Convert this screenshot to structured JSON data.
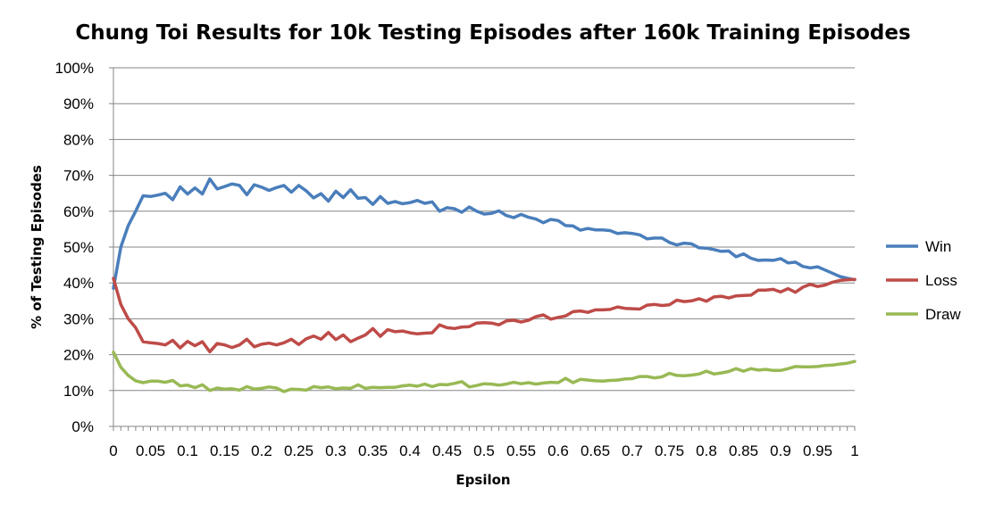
{
  "chart_data": {
    "type": "line",
    "title": "Chung Toi Results for 10k Testing Episodes after 160k Training Episodes",
    "xlabel": "Epsilon",
    "ylabel": "% of Testing Episodes",
    "xlim": [
      0,
      1
    ],
    "ylim": [
      0,
      100
    ],
    "grid": true,
    "legend": "right",
    "x_ticks": [
      "0",
      "0.05",
      "0.1",
      "0.15",
      "0.2",
      "0.25",
      "0.3",
      "0.35",
      "0.4",
      "0.45",
      "0.5",
      "0.55",
      "0.6",
      "0.65",
      "0.7",
      "0.75",
      "0.8",
      "0.85",
      "0.9",
      "0.95",
      "1"
    ],
    "y_ticks": [
      "0%",
      "10%",
      "20%",
      "30%",
      "40%",
      "50%",
      "60%",
      "70%",
      "80%",
      "90%",
      "100%"
    ],
    "x": [
      0,
      0.01,
      0.02,
      0.03,
      0.04,
      0.05,
      0.06,
      0.07,
      0.08,
      0.09,
      0.1,
      0.11,
      0.12,
      0.13,
      0.14,
      0.15,
      0.16,
      0.17,
      0.18,
      0.19,
      0.2,
      0.21,
      0.22,
      0.23,
      0.24,
      0.25,
      0.26,
      0.27,
      0.28,
      0.29,
      0.3,
      0.31,
      0.32,
      0.33,
      0.34,
      0.35,
      0.36,
      0.37,
      0.38,
      0.39,
      0.4,
      0.41,
      0.42,
      0.43,
      0.44,
      0.45,
      0.46,
      0.47,
      0.48,
      0.49,
      0.5,
      0.51,
      0.52,
      0.53,
      0.54,
      0.55,
      0.56,
      0.57,
      0.58,
      0.59,
      0.6,
      0.61,
      0.62,
      0.63,
      0.64,
      0.65,
      0.66,
      0.67,
      0.68,
      0.69,
      0.7,
      0.71,
      0.72,
      0.73,
      0.74,
      0.75,
      0.76,
      0.77,
      0.78,
      0.79,
      0.8,
      0.81,
      0.82,
      0.83,
      0.84,
      0.85,
      0.86,
      0.87,
      0.88,
      0.89,
      0.9,
      0.91,
      0.92,
      0.93,
      0.94,
      0.95,
      0.96,
      0.97,
      0.98,
      0.99,
      1.0
    ],
    "series": [
      {
        "name": "Win",
        "color": "#4A7EBB",
        "values": [
          38.5,
          50.0,
          56.0,
          60.0,
          64.3,
          64.1,
          64.5,
          65.0,
          63.2,
          66.8,
          64.8,
          66.5,
          64.8,
          69.0,
          66.2,
          66.9,
          67.6,
          67.2,
          64.6,
          67.4,
          66.7,
          65.8,
          66.6,
          67.2,
          65.3,
          67.2,
          65.7,
          63.7,
          64.9,
          62.8,
          65.6,
          63.8,
          66.0,
          63.6,
          63.8,
          61.9,
          64.1,
          62.2,
          62.7,
          62.1,
          62.4,
          63.0,
          62.2,
          62.6,
          60.0,
          61.0,
          60.7,
          59.7,
          61.2,
          60.0,
          59.2,
          59.4,
          60.1,
          58.8,
          58.2,
          59.1,
          58.3,
          57.8,
          56.8,
          57.7,
          57.4,
          56.0,
          55.9,
          54.7,
          55.2,
          54.8,
          54.8,
          54.6,
          53.8,
          54.0,
          53.8,
          53.4,
          52.3,
          52.5,
          52.5,
          51.3,
          50.6,
          51.1,
          50.9,
          49.8,
          49.7,
          49.3,
          48.8,
          48.9,
          47.3,
          48.1,
          46.9,
          46.3,
          46.4,
          46.3,
          46.8,
          45.6,
          45.8,
          44.6,
          44.2,
          44.5,
          43.6,
          42.7,
          41.8,
          41.3,
          40.9
        ]
      },
      {
        "name": "Loss",
        "color": "#BE4B48",
        "values": [
          41.3,
          34.0,
          30.0,
          27.5,
          23.6,
          23.3,
          23.1,
          22.7,
          24.0,
          21.9,
          23.7,
          22.5,
          23.6,
          20.8,
          23.1,
          22.7,
          22.0,
          22.7,
          24.3,
          22.2,
          22.9,
          23.2,
          22.7,
          23.3,
          24.3,
          22.8,
          24.4,
          25.2,
          24.3,
          26.2,
          24.2,
          25.5,
          23.6,
          24.6,
          25.5,
          27.3,
          25.1,
          27.0,
          26.4,
          26.6,
          26.1,
          25.8,
          26.0,
          26.1,
          28.3,
          27.5,
          27.3,
          27.7,
          27.8,
          28.8,
          28.9,
          28.8,
          28.3,
          29.4,
          29.6,
          29.1,
          29.6,
          30.6,
          31.1,
          29.9,
          30.4,
          30.8,
          32.0,
          32.2,
          31.8,
          32.5,
          32.5,
          32.6,
          33.3,
          32.9,
          32.8,
          32.7,
          33.8,
          34.0,
          33.7,
          33.9,
          35.2,
          34.8,
          35.0,
          35.6,
          34.9,
          36.1,
          36.3,
          35.8,
          36.4,
          36.5,
          36.6,
          38.0,
          38.0,
          38.2,
          37.5,
          38.4,
          37.4,
          38.8,
          39.6,
          39.0,
          39.4,
          40.2,
          40.7,
          40.9,
          41.0
        ]
      },
      {
        "name": "Draw",
        "color": "#98B954",
        "values": [
          20.7,
          16.5,
          14.2,
          12.7,
          12.2,
          12.6,
          12.6,
          12.3,
          12.8,
          11.3,
          11.5,
          10.8,
          11.6,
          10.0,
          10.7,
          10.4,
          10.5,
          10.1,
          11.1,
          10.4,
          10.6,
          11.0,
          10.7,
          9.7,
          10.4,
          10.3,
          10.1,
          11.1,
          10.8,
          11.0,
          10.5,
          10.7,
          10.6,
          11.6,
          10.6,
          10.9,
          10.8,
          10.9,
          10.9,
          11.3,
          11.5,
          11.2,
          11.8,
          11.1,
          11.7,
          11.6,
          12.0,
          12.5,
          11.0,
          11.4,
          11.9,
          11.8,
          11.5,
          11.8,
          12.3,
          11.9,
          12.2,
          11.8,
          12.1,
          12.3,
          12.2,
          13.4,
          12.2,
          13.1,
          12.9,
          12.7,
          12.6,
          12.8,
          12.9,
          13.2,
          13.3,
          13.9,
          13.9,
          13.5,
          13.8,
          14.8,
          14.2,
          14.1,
          14.3,
          14.6,
          15.4,
          14.6,
          14.9,
          15.3,
          16.1,
          15.4,
          16.1,
          15.7,
          15.9,
          15.6,
          15.6,
          16.1,
          16.7,
          16.6,
          16.6,
          16.7,
          17.0,
          17.1,
          17.4,
          17.6,
          18.1
        ]
      }
    ]
  }
}
